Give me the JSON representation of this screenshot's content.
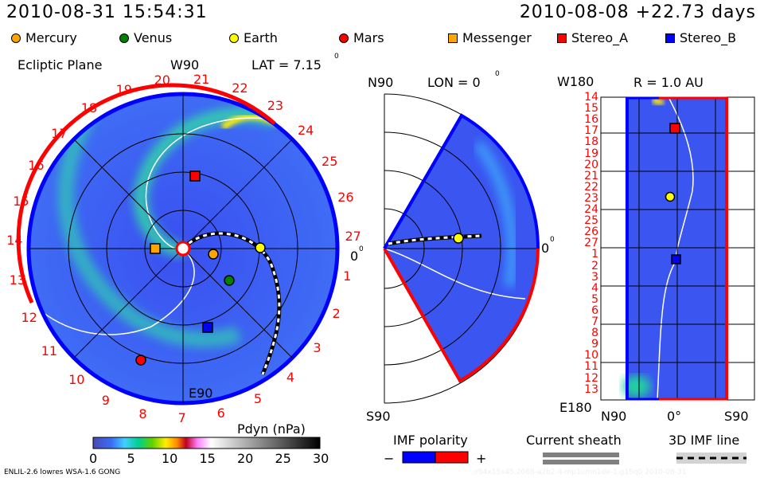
{
  "header": {
    "current_time": "2010-08-31 15:54:31",
    "reference": "2010-08-08 +22.73 days"
  },
  "legend": [
    {
      "label": "Mercury",
      "shape": "circle",
      "color": "#ffa500"
    },
    {
      "label": "Venus",
      "shape": "circle",
      "color": "#008000"
    },
    {
      "label": "Earth",
      "shape": "circle",
      "color": "#ffff00"
    },
    {
      "label": "Mars",
      "shape": "circle",
      "color": "#ff0000"
    },
    {
      "label": "Messenger",
      "shape": "square",
      "color": "#ffa500"
    },
    {
      "label": "Stereo_A",
      "shape": "square",
      "color": "#ff0000"
    },
    {
      "label": "Stereo_B",
      "shape": "square",
      "color": "#0000ff"
    }
  ],
  "ecliptic": {
    "title": "Ecliptic Plane",
    "top_label": "W90",
    "bottom_label": "E90",
    "right_label": "0",
    "lat": "LAT = 7.15",
    "deg": "0",
    "ticks": [
      "1",
      "2",
      "3",
      "4",
      "5",
      "6",
      "7",
      "8",
      "9",
      "10",
      "11",
      "12",
      "13",
      "14",
      "15",
      "16",
      "17",
      "18",
      "19",
      "20",
      "21",
      "22",
      "23",
      "24",
      "25",
      "26",
      "27"
    ]
  },
  "meridional": {
    "top_label": "N90",
    "bottom_label": "S90",
    "lon": "LON = 0",
    "deg": "0",
    "right_label": "0"
  },
  "radial": {
    "title": "R = 1.0 AU",
    "top_label": "W180",
    "bottom_label": "E180",
    "x_labels": [
      "N90",
      "0°",
      "S90"
    ],
    "ticks": [
      "14",
      "15",
      "16",
      "17",
      "18",
      "19",
      "20",
      "21",
      "22",
      "23",
      "24",
      "25",
      "26",
      "27",
      "1",
      "2",
      "3",
      "4",
      "5",
      "6",
      "7",
      "8",
      "9",
      "10",
      "11",
      "12",
      "13"
    ]
  },
  "colorbar": {
    "title": "Pdyn (nPa)",
    "ticks": [
      "0",
      "5",
      "10",
      "15",
      "20",
      "25",
      "30"
    ],
    "range": [
      0,
      30
    ]
  },
  "imf": {
    "title": "IMF polarity",
    "minus": "−",
    "plus": "+",
    "negative_color": "#0000ff",
    "positive_color": "#ff0000"
  },
  "sheath": {
    "title": "Current sheath"
  },
  "imf_line": {
    "title": "3D IMF line"
  },
  "footer": {
    "model": "ENLIL-2.6 lowres WSA-1.6 GONG",
    "run_id": ".//64x15x45.2068-a2b2.4-mp1umn1de-1.g15q0   2010-08-31"
  }
}
